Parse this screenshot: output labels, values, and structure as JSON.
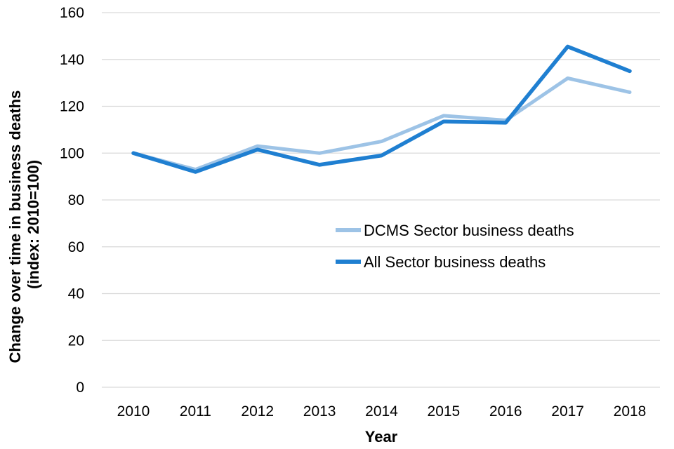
{
  "chart_data": {
    "type": "line",
    "title": "",
    "xlabel": "Year",
    "ylabel_line1": "Change over time in business deaths",
    "ylabel_line2": "(index: 2010=100)",
    "categories": [
      "2010",
      "2011",
      "2012",
      "2013",
      "2014",
      "2015",
      "2016",
      "2017",
      "2018"
    ],
    "ylim": [
      0,
      160
    ],
    "yticks": [
      0,
      20,
      40,
      60,
      80,
      100,
      120,
      140,
      160
    ],
    "grid": true,
    "legend_position": "center-right",
    "series": [
      {
        "name": "DCMS Sector business deaths",
        "color": "#9dc3e6",
        "values": [
          100,
          93,
          103,
          100,
          105,
          116,
          114,
          132,
          126
        ]
      },
      {
        "name": "All Sector business deaths",
        "color": "#1f7fd1",
        "values": [
          100,
          92,
          101.5,
          95,
          99,
          113.5,
          113,
          145.5,
          135
        ]
      }
    ]
  }
}
